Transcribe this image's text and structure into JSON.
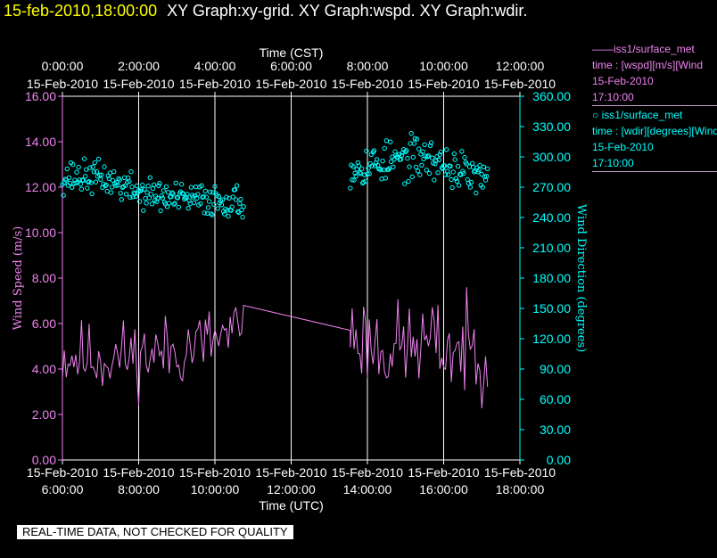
{
  "header": {
    "timestamp": "15-feb-2010,18:00:00",
    "graphs": "XY Graph:xy-grid.  XY Graph:wspd.  XY Graph:wdir."
  },
  "legend": {
    "wspd": {
      "name": "——iss1/surface_met",
      "line2": "time : [wspd][m/s][Wind",
      "date": "15-Feb-2010",
      "time": "17:10:00"
    },
    "wdir": {
      "name": "○  iss1/surface_met",
      "line2": "time : [wdir][degrees][Wind",
      "date": "15-Feb-2010",
      "time": "17:10:00"
    }
  },
  "footer": "REAL-TIME DATA, NOT CHECKED FOR QUALITY",
  "colors": {
    "wspd": "#ee82ee",
    "wdir": "#00ffff",
    "title": "#ffff00",
    "axis_left": "#ee82ee",
    "axis_right": "#00ffff"
  },
  "chart_data": {
    "type": "line",
    "top_axis": {
      "label": "Time (CST)",
      "ticks": [
        {
          "time": "0:00:00",
          "date": "15-Feb-2010"
        },
        {
          "time": "2:00:00",
          "date": "15-Feb-2010"
        },
        {
          "time": "4:00:00",
          "date": "15-Feb-2010"
        },
        {
          "time": "6:00:00",
          "date": "15-Feb-2010"
        },
        {
          "time": "8:00:00",
          "date": "15-Feb-2010"
        },
        {
          "time": "10:00:00",
          "date": "15-Feb-2010"
        },
        {
          "time": "12:00:00",
          "date": "15-Feb-2010"
        }
      ]
    },
    "bottom_axis": {
      "label": "Time (UTC)",
      "ticks": [
        {
          "date": "15-Feb-2010",
          "time": "6:00:00"
        },
        {
          "date": "15-Feb-2010",
          "time": "8:00:00"
        },
        {
          "date": "15-Feb-2010",
          "time": "10:00:00"
        },
        {
          "date": "15-Feb-2010",
          "time": "12:00:00"
        },
        {
          "date": "15-Feb-2010",
          "time": "14:00:00"
        },
        {
          "date": "15-Feb-2010",
          "time": "16:00:00"
        },
        {
          "date": "15-Feb-2010",
          "time": "18:00:00"
        }
      ],
      "range_hours_utc": [
        6,
        18
      ]
    },
    "left_axis": {
      "label": "Wind Speed (m/s)",
      "range": [
        0,
        16
      ],
      "ticks": [
        "0.00",
        "2.00",
        "4.00",
        "6.00",
        "8.00",
        "10.00",
        "12.00",
        "14.00",
        "16.00"
      ]
    },
    "right_axis": {
      "label": "Wind Direction (degrees)",
      "range": [
        0,
        360
      ],
      "ticks": [
        "0.00",
        "30.00",
        "60.00",
        "90.00",
        "120.00",
        "150.00",
        "180.00",
        "210.00",
        "240.00",
        "270.00",
        "300.00",
        "330.00",
        "360.00"
      ]
    },
    "grid": "vertical",
    "series": [
      {
        "name": "iss1/surface_met wspd",
        "axis": "left",
        "style": "line",
        "segments": [
          {
            "start": 6.0,
            "end": 10.7,
            "step": 0.05,
            "mean": [
              [
                6.0,
                4.6
              ],
              [
                7.0,
                4.5
              ],
              [
                8.0,
                4.6
              ],
              [
                9.0,
                4.8
              ],
              [
                10.0,
                5.3
              ],
              [
                10.7,
                5.6
              ]
            ],
            "noise": 0.8,
            "seed": 11
          },
          {
            "start": 10.75,
            "end": 13.55,
            "step": 2.8,
            "mean": [
              [
                10.75,
                6.8
              ],
              [
                13.55,
                5.7
              ]
            ],
            "noise": 0,
            "seed": 1
          },
          {
            "start": 13.55,
            "end": 17.15,
            "step": 0.05,
            "mean": [
              [
                13.55,
                5.6
              ],
              [
                14.5,
                4.9
              ],
              [
                15.5,
                5.1
              ],
              [
                16.5,
                4.8
              ],
              [
                17.15,
                4.9
              ]
            ],
            "noise": 1.0,
            "seed": 23
          }
        ]
      },
      {
        "name": "iss1/surface_met wdir",
        "axis": "right",
        "style": "circles",
        "segments": [
          {
            "start": 6.0,
            "end": 10.75,
            "step": 0.025,
            "mean": [
              [
                6.0,
                280
              ],
              [
                7.0,
                280
              ],
              [
                8.0,
                265
              ],
              [
                9.0,
                258
              ],
              [
                10.0,
                258
              ],
              [
                10.7,
                255
              ]
            ],
            "noise": 8,
            "seed": 37
          },
          {
            "start": 13.55,
            "end": 17.15,
            "step": 0.025,
            "mean": [
              [
                13.55,
                290
              ],
              [
                14.5,
                295
              ],
              [
                15.5,
                300
              ],
              [
                16.5,
                285
              ],
              [
                17.15,
                275
              ]
            ],
            "noise": 10,
            "seed": 53
          }
        ]
      }
    ]
  }
}
